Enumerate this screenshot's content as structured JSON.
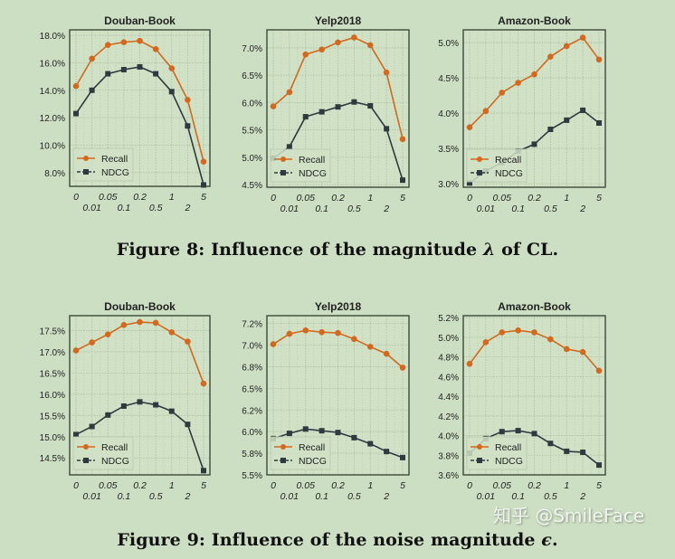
{
  "colors": {
    "recall": "#d2691e",
    "ndcg": "#2f3a40",
    "background": "#cddfc3",
    "grid": "#a9bf9f"
  },
  "x_categories": [
    "0",
    "0.01",
    "0.05",
    "0.1",
    "0.2",
    "0.5",
    "1",
    "2",
    "5"
  ],
  "legend": [
    "Recall",
    "NDCG"
  ],
  "captions": {
    "fig8": {
      "prefix": "Figure 8: Influence of the magnitude ",
      "symbol": "λ",
      "suffix": " of CL."
    },
    "fig9": {
      "prefix": "Figure 9: Influence of the noise magnitude ",
      "symbol": "ϵ",
      "suffix": "."
    }
  },
  "watermark": "知乎 @SmileFace",
  "chart_data": [
    {
      "type": "line",
      "figure": "Figure 8",
      "title": "Douban-Book",
      "ylim": [
        7.0,
        18.4
      ],
      "yticks": [
        8,
        10,
        12,
        14,
        16,
        18
      ],
      "ytick_labels": [
        "8.0%",
        "10.0%",
        "12.0%",
        "14.0%",
        "16.0%",
        "18.0%"
      ],
      "series": [
        {
          "name": "Recall",
          "values": [
            14.3,
            16.3,
            17.3,
            17.5,
            17.6,
            17.0,
            15.6,
            13.3,
            8.8
          ]
        },
        {
          "name": "NDCG",
          "values": [
            12.3,
            14.0,
            15.2,
            15.5,
            15.7,
            15.2,
            13.9,
            11.4,
            7.1
          ]
        }
      ]
    },
    {
      "type": "line",
      "figure": "Figure 8",
      "title": "Yelp2018",
      "ylim": [
        4.45,
        7.33
      ],
      "yticks": [
        4.5,
        5.0,
        5.5,
        6.0,
        6.5,
        7.0
      ],
      "ytick_labels": [
        "4.5%",
        "5.0%",
        "5.5%",
        "6.0%",
        "6.5%",
        "7.0%"
      ],
      "series": [
        {
          "name": "Recall",
          "values": [
            5.93,
            6.19,
            6.88,
            6.97,
            7.1,
            7.19,
            7.05,
            6.55,
            5.33
          ]
        },
        {
          "name": "NDCG",
          "values": [
            4.98,
            5.19,
            5.74,
            5.83,
            5.92,
            6.01,
            5.94,
            5.52,
            4.58
          ]
        }
      ]
    },
    {
      "type": "line",
      "figure": "Figure 8",
      "title": "Amazon-Book",
      "ylim": [
        2.95,
        5.18
      ],
      "yticks": [
        3.0,
        3.5,
        4.0,
        4.5,
        5.0
      ],
      "ytick_labels": [
        "3.0%",
        "3.5%",
        "4.0%",
        "4.5%",
        "5.0%"
      ],
      "series": [
        {
          "name": "Recall",
          "values": [
            3.8,
            4.03,
            4.29,
            4.43,
            4.55,
            4.8,
            4.95,
            5.07,
            4.76
          ]
        },
        {
          "name": "NDCG",
          "values": [
            3.01,
            3.18,
            3.3,
            3.46,
            3.56,
            3.77,
            3.9,
            4.04,
            3.86
          ]
        }
      ]
    },
    {
      "type": "line",
      "figure": "Figure 9",
      "title": "Douban-Book",
      "ylim": [
        14.1,
        17.85
      ],
      "yticks": [
        14.5,
        15.0,
        15.5,
        16.0,
        16.5,
        17.0,
        17.5
      ],
      "ytick_labels": [
        "14.5%",
        "15.0%",
        "15.5%",
        "16.0%",
        "16.5%",
        "17.0%",
        "17.5%"
      ],
      "series": [
        {
          "name": "Recall",
          "values": [
            17.03,
            17.22,
            17.41,
            17.63,
            17.7,
            17.68,
            17.46,
            17.24,
            16.25
          ]
        },
        {
          "name": "NDCG",
          "values": [
            15.05,
            15.24,
            15.51,
            15.72,
            15.82,
            15.75,
            15.6,
            15.29,
            14.2
          ]
        }
      ]
    },
    {
      "type": "line",
      "figure": "Figure 9",
      "title": "Yelp2018",
      "ylim": [
        5.5,
        7.34
      ],
      "yticks": [
        5.5,
        5.75,
        6.0,
        6.25,
        6.5,
        6.75,
        7.0,
        7.25
      ],
      "ytick_labels": [
        "5.5%",
        "5.8%",
        "6.0%",
        "6.2%",
        "6.5%",
        "6.8%",
        "7.0%",
        "7.2%"
      ],
      "series": [
        {
          "name": "Recall",
          "values": [
            7.01,
            7.13,
            7.17,
            7.15,
            7.14,
            7.07,
            6.98,
            6.9,
            6.74
          ]
        },
        {
          "name": "NDCG",
          "values": [
            5.92,
            5.98,
            6.03,
            6.01,
            5.99,
            5.93,
            5.86,
            5.77,
            5.7
          ]
        }
      ]
    },
    {
      "type": "line",
      "figure": "Figure 9",
      "title": "Amazon-Book",
      "ylim": [
        3.6,
        5.22
      ],
      "yticks": [
        3.6,
        3.8,
        4.0,
        4.2,
        4.4,
        4.6,
        4.8,
        5.0,
        5.2
      ],
      "ytick_labels": [
        "3.6%",
        "3.8%",
        "4.0%",
        "4.2%",
        "4.4%",
        "4.6%",
        "4.8%",
        "5.0%",
        "5.2%"
      ],
      "series": [
        {
          "name": "Recall",
          "values": [
            4.73,
            4.95,
            5.05,
            5.07,
            5.05,
            4.98,
            4.88,
            4.85,
            4.66
          ]
        },
        {
          "name": "NDCG",
          "values": [
            3.82,
            3.97,
            4.04,
            4.05,
            4.02,
            3.92,
            3.84,
            3.83,
            3.7
          ]
        }
      ]
    }
  ]
}
